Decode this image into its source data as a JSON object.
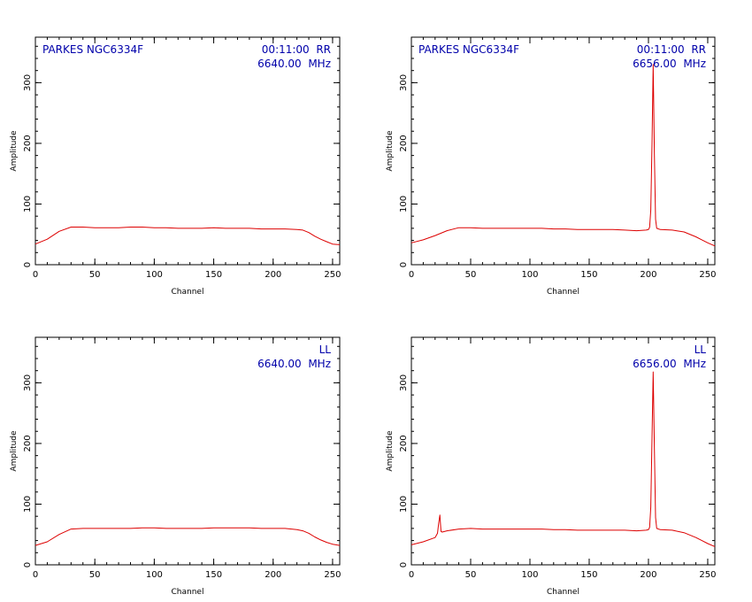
{
  "chart_data": [
    {
      "type": "line",
      "xlabel": "Channel",
      "ylabel": "Amplitude",
      "xlim": [
        0,
        256
      ],
      "ylim": [
        0,
        375
      ],
      "xticks": [
        0,
        50,
        100,
        150,
        200,
        250
      ],
      "yticks": [
        0,
        100,
        200,
        300
      ],
      "annotations": {
        "source": "PARKES NGC6334F",
        "time_pol": "00:11:00  RR",
        "frequency": "6640.00  MHz"
      },
      "series": [
        {
          "color": "#dd0000",
          "x": [
            0,
            10,
            20,
            30,
            40,
            50,
            60,
            70,
            80,
            90,
            100,
            110,
            120,
            130,
            140,
            150,
            160,
            170,
            180,
            190,
            200,
            210,
            220,
            225,
            230,
            235,
            240,
            245,
            250,
            256
          ],
          "y": [
            34,
            42,
            55,
            62,
            62,
            61,
            61,
            61,
            62,
            62,
            61,
            61,
            60,
            60,
            60,
            61,
            60,
            60,
            60,
            59,
            59,
            59,
            58,
            57,
            53,
            47,
            42,
            38,
            34,
            33
          ]
        }
      ]
    },
    {
      "type": "line",
      "xlabel": "Channel",
      "ylabel": "Amplitude",
      "xlim": [
        0,
        256
      ],
      "ylim": [
        0,
        375
      ],
      "xticks": [
        0,
        50,
        100,
        150,
        200,
        250
      ],
      "yticks": [
        0,
        100,
        200,
        300
      ],
      "annotations": {
        "source": "PARKES NGC6334F",
        "time_pol": "00:11:00  RR",
        "frequency": "6656.00  MHz"
      },
      "series": [
        {
          "color": "#dd0000",
          "x": [
            0,
            10,
            20,
            30,
            40,
            50,
            60,
            70,
            80,
            90,
            100,
            110,
            120,
            130,
            140,
            150,
            160,
            170,
            180,
            190,
            198,
            200,
            201,
            202,
            203,
            204,
            205,
            206,
            207,
            210,
            220,
            230,
            240,
            245,
            250,
            256
          ],
          "y": [
            36,
            41,
            48,
            56,
            61,
            61,
            60,
            60,
            60,
            60,
            60,
            60,
            59,
            59,
            58,
            58,
            58,
            58,
            57,
            56,
            57,
            58,
            62,
            90,
            200,
            330,
            180,
            75,
            60,
            58,
            57,
            54,
            46,
            41,
            36,
            31
          ]
        }
      ]
    },
    {
      "type": "line",
      "xlabel": "Channel",
      "ylabel": "Amplitude",
      "xlim": [
        0,
        256
      ],
      "ylim": [
        0,
        375
      ],
      "xticks": [
        0,
        50,
        100,
        150,
        200,
        250
      ],
      "yticks": [
        0,
        100,
        200,
        300
      ],
      "annotations": {
        "time_pol": "LL",
        "frequency": "6640.00  MHz"
      },
      "series": [
        {
          "color": "#dd0000",
          "x": [
            0,
            10,
            20,
            30,
            40,
            50,
            60,
            70,
            80,
            90,
            100,
            110,
            120,
            130,
            140,
            150,
            160,
            170,
            180,
            190,
            200,
            210,
            220,
            225,
            230,
            235,
            240,
            245,
            250,
            256
          ],
          "y": [
            32,
            38,
            50,
            59,
            60,
            60,
            60,
            60,
            60,
            61,
            61,
            60,
            60,
            60,
            60,
            61,
            61,
            61,
            61,
            60,
            60,
            60,
            58,
            56,
            52,
            46,
            41,
            37,
            34,
            32
          ]
        }
      ]
    },
    {
      "type": "line",
      "xlabel": "Channel",
      "ylabel": "Amplitude",
      "xlim": [
        0,
        256
      ],
      "ylim": [
        0,
        375
      ],
      "xticks": [
        0,
        50,
        100,
        150,
        200,
        250
      ],
      "yticks": [
        0,
        100,
        200,
        300
      ],
      "annotations": {
        "time_pol": "LL",
        "frequency": "6656.00  MHz"
      },
      "series": [
        {
          "color": "#dd0000",
          "x": [
            0,
            10,
            20,
            22,
            23,
            24,
            25,
            26,
            30,
            40,
            50,
            60,
            70,
            80,
            90,
            100,
            110,
            120,
            130,
            140,
            150,
            160,
            170,
            180,
            190,
            198,
            200,
            201,
            202,
            203,
            204,
            205,
            206,
            207,
            210,
            220,
            230,
            240,
            245,
            250,
            256
          ],
          "y": [
            33,
            38,
            45,
            52,
            68,
            82,
            55,
            54,
            56,
            59,
            60,
            59,
            59,
            59,
            59,
            59,
            59,
            58,
            58,
            57,
            57,
            57,
            57,
            57,
            56,
            57,
            58,
            62,
            95,
            210,
            318,
            190,
            78,
            60,
            58,
            57,
            53,
            45,
            40,
            35,
            30
          ]
        }
      ]
    }
  ]
}
